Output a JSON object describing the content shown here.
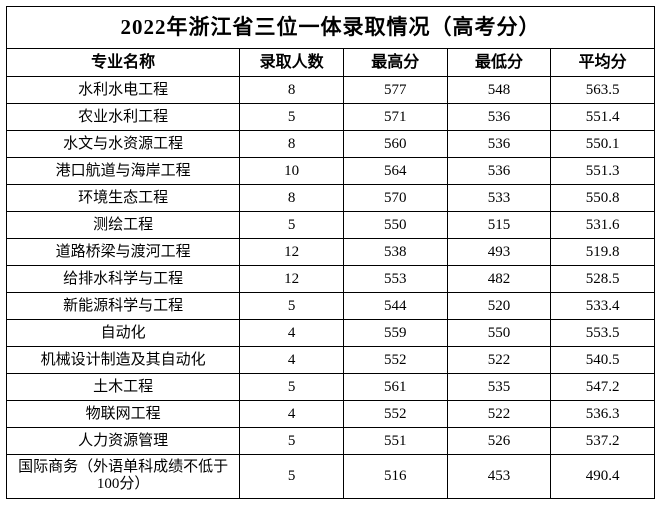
{
  "title": "2022年浙江省三位一体录取情况（高考分）",
  "columns": [
    "专业名称",
    "录取人数",
    "最高分",
    "最低分",
    "平均分"
  ],
  "rows": [
    {
      "name": "水利水电工程",
      "count": 8,
      "max": 577,
      "min": 548,
      "avg": "563.5",
      "multi": false
    },
    {
      "name": "农业水利工程",
      "count": 5,
      "max": 571,
      "min": 536,
      "avg": "551.4",
      "multi": false
    },
    {
      "name": "水文与水资源工程",
      "count": 8,
      "max": 560,
      "min": 536,
      "avg": "550.1",
      "multi": false
    },
    {
      "name": "港口航道与海岸工程",
      "count": 10,
      "max": 564,
      "min": 536,
      "avg": "551.3",
      "multi": false
    },
    {
      "name": "环境生态工程",
      "count": 8,
      "max": 570,
      "min": 533,
      "avg": "550.8",
      "multi": false
    },
    {
      "name": "测绘工程",
      "count": 5,
      "max": 550,
      "min": 515,
      "avg": "531.6",
      "multi": false
    },
    {
      "name": "道路桥梁与渡河工程",
      "count": 12,
      "max": 538,
      "min": 493,
      "avg": "519.8",
      "multi": false
    },
    {
      "name": "给排水科学与工程",
      "count": 12,
      "max": 553,
      "min": 482,
      "avg": "528.5",
      "multi": false
    },
    {
      "name": "新能源科学与工程",
      "count": 5,
      "max": 544,
      "min": 520,
      "avg": "533.4",
      "multi": false
    },
    {
      "name": "自动化",
      "count": 4,
      "max": 559,
      "min": 550,
      "avg": "553.5",
      "multi": false
    },
    {
      "name": "机械设计制造及其自动化",
      "count": 4,
      "max": 552,
      "min": 522,
      "avg": "540.5",
      "multi": false
    },
    {
      "name": "土木工程",
      "count": 5,
      "max": 561,
      "min": 535,
      "avg": "547.2",
      "multi": false
    },
    {
      "name": "物联网工程",
      "count": 4,
      "max": 552,
      "min": 522,
      "avg": "536.3",
      "multi": false
    },
    {
      "name": "人力资源管理",
      "count": 5,
      "max": 551,
      "min": 526,
      "avg": "537.2",
      "multi": false
    },
    {
      "name": "国际商务（外语单科成绩不低于100分）",
      "count": 5,
      "max": 516,
      "min": 453,
      "avg": "490.4",
      "multi": true
    }
  ],
  "styling": {
    "border_color": "#000000",
    "background_color": "#ffffff",
    "text_color": "#000000",
    "title_fontsize": 21,
    "header_fontsize": 16,
    "cell_fontsize": 15,
    "font_family": "SimSun"
  }
}
